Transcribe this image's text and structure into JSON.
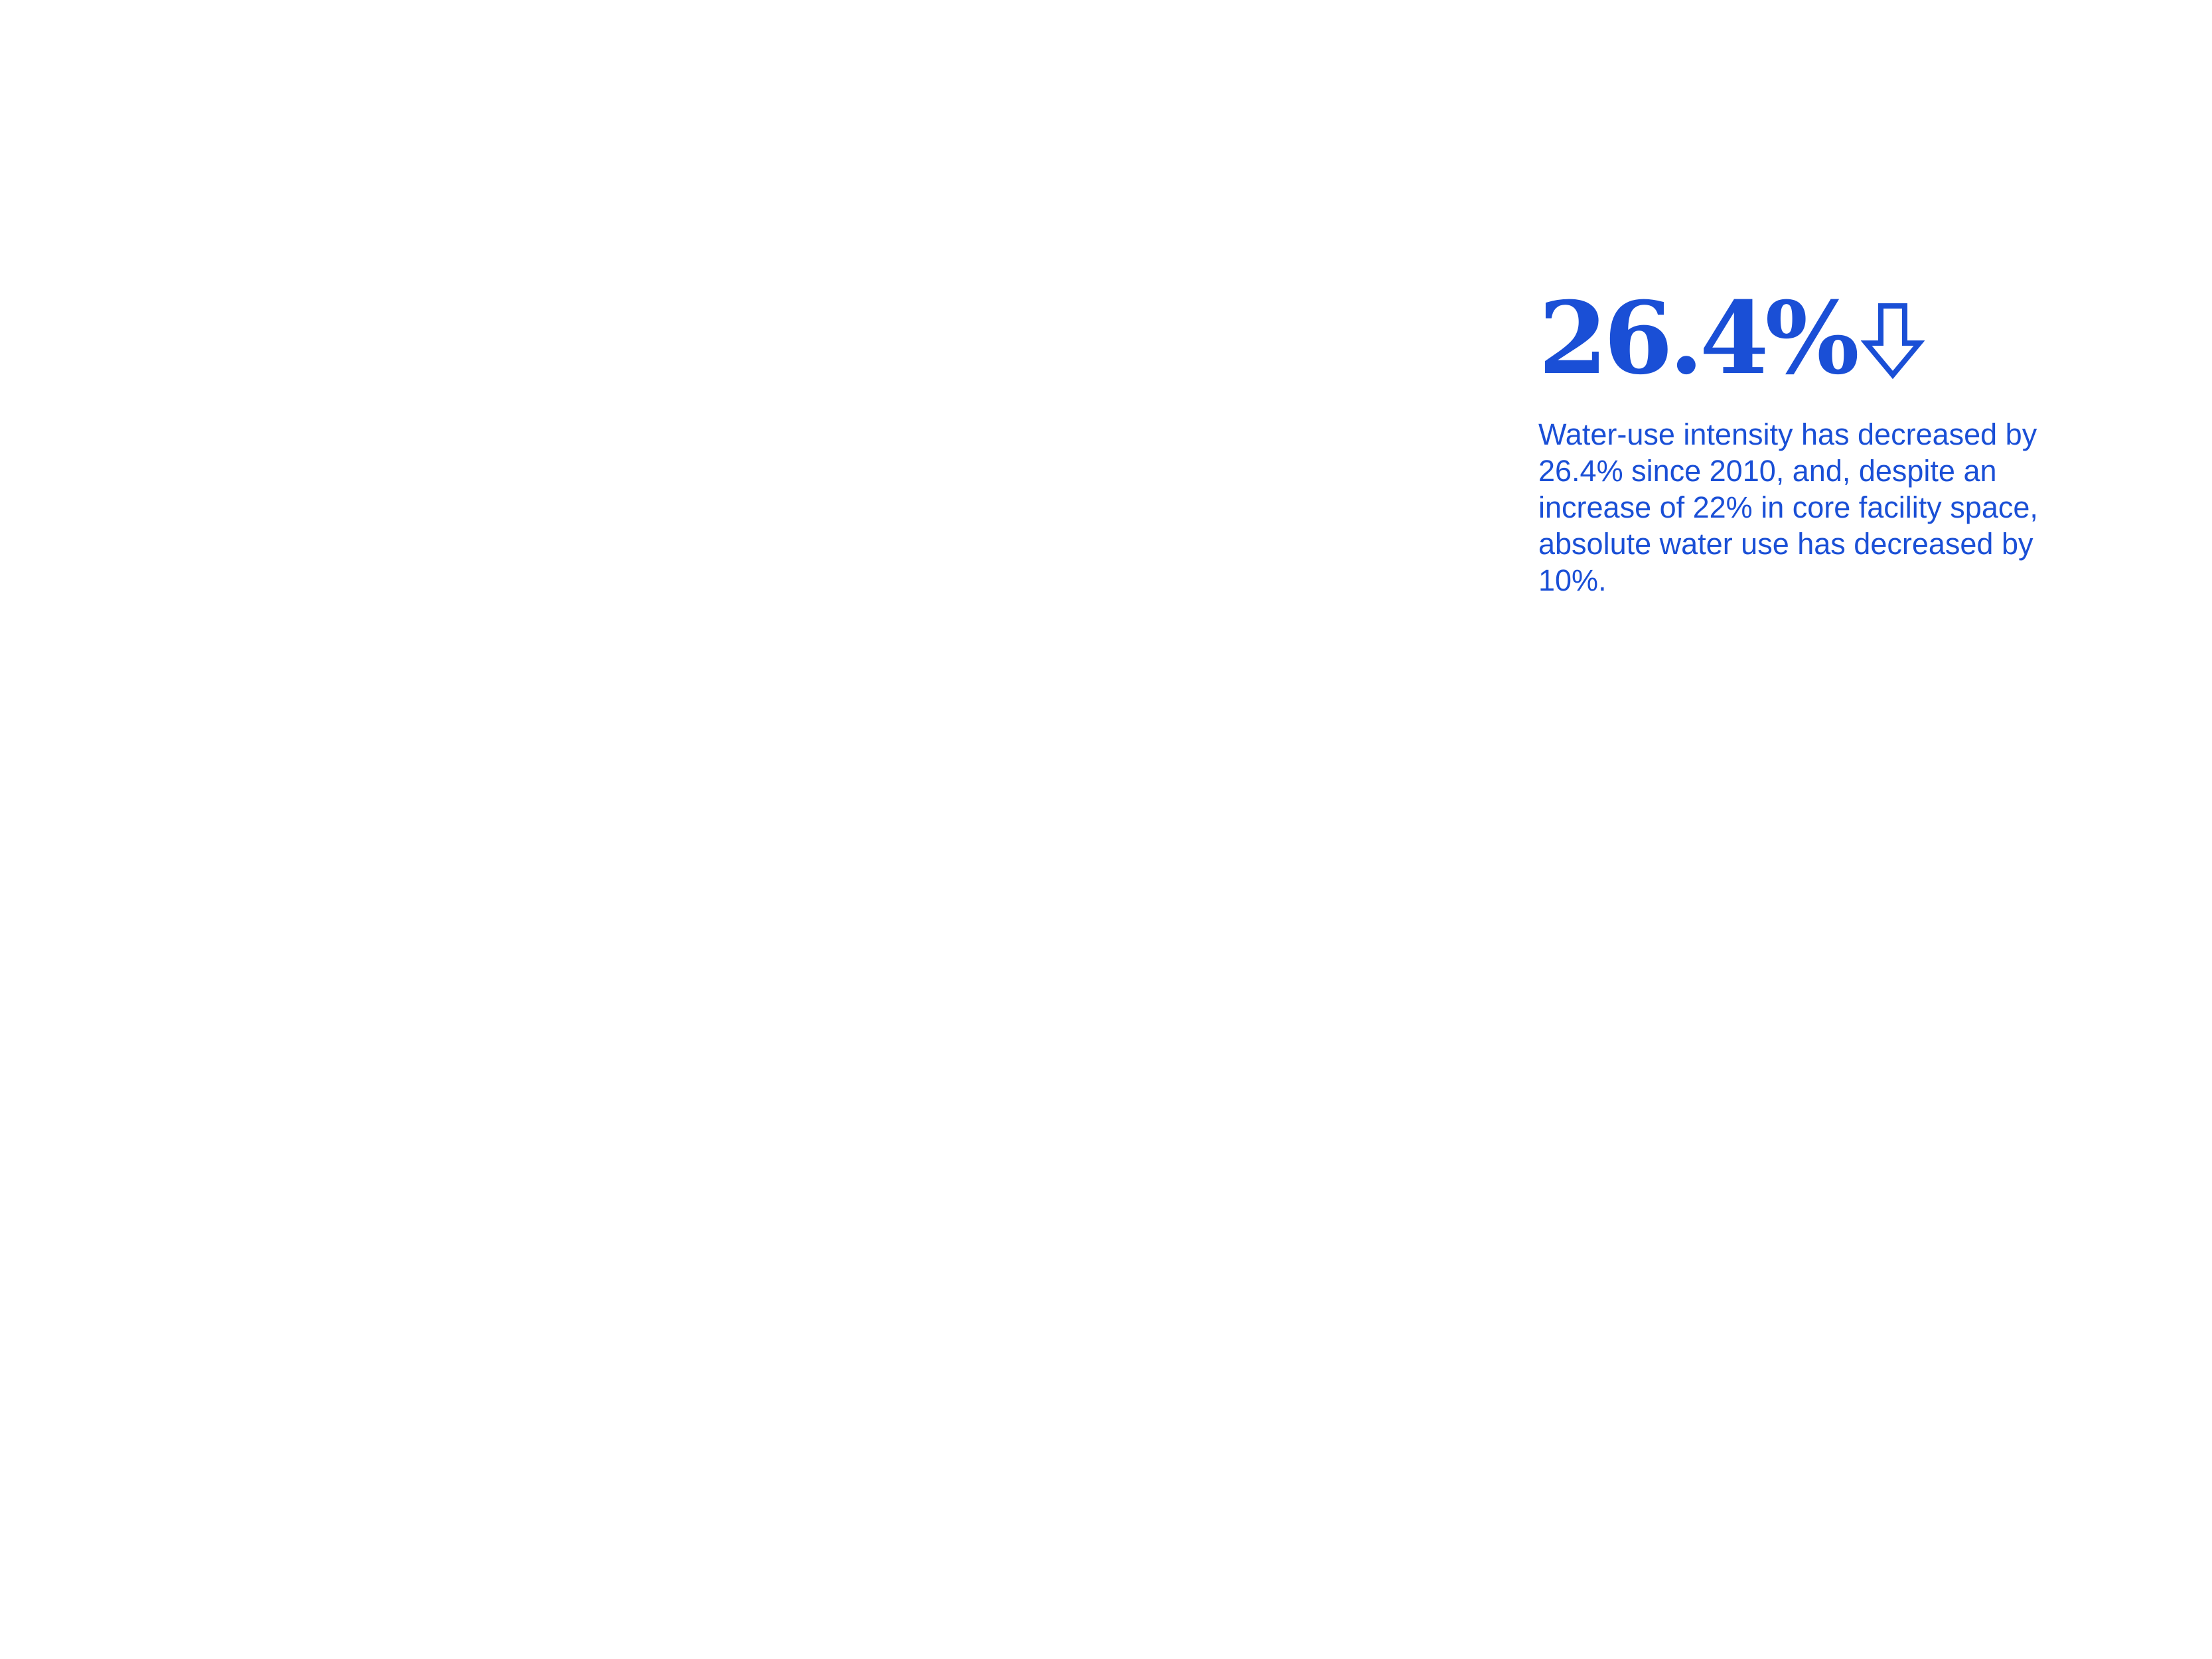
{
  "stat": {
    "value": "26.4%",
    "trend_icon": "down-arrow-icon",
    "description": "Water-use intensity has decreased by 26.4% since 2010, and, despite an increase of 22% in core facility space, absolute water use has decreased by 10%."
  },
  "colors": {
    "accent": "#1a4fd6",
    "background": "#ffffff"
  }
}
